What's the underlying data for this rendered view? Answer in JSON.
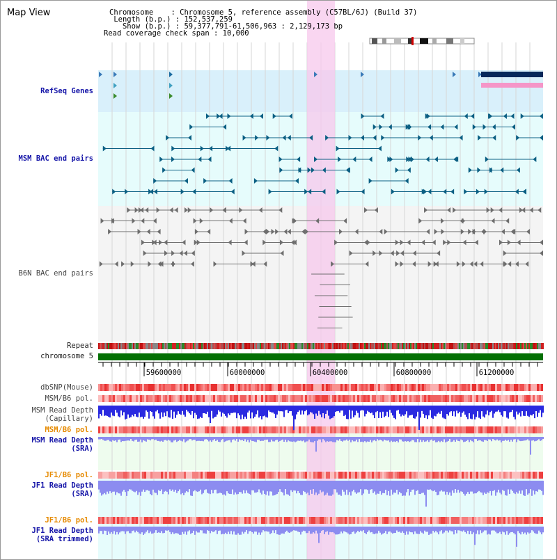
{
  "title": "Map View",
  "info": {
    "chromosome": "Chromosome    : Chromosome 5, reference assembly (C57BL/6J) (Build 37)",
    "length": " Length (b.p.) : 152,537,259",
    "show": "   Show (b.p.) : 59,377,791-61,506,963 : 2,129,173 bp",
    "coverage": "Read coverage check span : 10,000"
  },
  "tracks": {
    "refseq": "RefSeq Genes",
    "msm_bac": "MSM BAC end pairs",
    "b6n_bac": "B6N BAC end pairs",
    "repeat": "Repeat",
    "chromosome": "chromosome 5",
    "dbsnp": "dbSNP(Mouse)",
    "msm_pol_1": "MSM/B6 pol.",
    "msm_depth_cap_1": "MSM Read Depth",
    "msm_depth_cap_2": "(Capillary)",
    "msm_pol_2": "MSM/B6 pol.",
    "msm_depth_sra_1": "MSM Read Depth",
    "msm_depth_sra_2": "(SRA)",
    "jf1_pol_1": "JF1/B6 pol.",
    "jf1_depth_sra_1": "JF1 Read Depth",
    "jf1_depth_sra_2": "(SRA)",
    "jf1_pol_2": "JF1/B6 pol.",
    "jf1_depth_trim_1": "JF1 Read Depth",
    "jf1_depth_trim_2": "(SRA trimmed)"
  },
  "axis_ticks": [
    "59600000",
    "60000000",
    "60400000",
    "60800000",
    "61200000"
  ],
  "colors": {
    "refseq_bg": "#d9f0fb",
    "msm_bg": "#e6fcfc",
    "b6n_bg": "#f4f4f4",
    "highlight": "#f7c8ec",
    "chromosome": "#047004",
    "msm_pair": "#0b5f83",
    "b6n_pair": "#6e6e6e",
    "depth_blue": "#2a2ae0",
    "depth_light": "#8c8cf0",
    "gene_dark": "#07285a",
    "gene_pink": "#f596c8"
  }
}
